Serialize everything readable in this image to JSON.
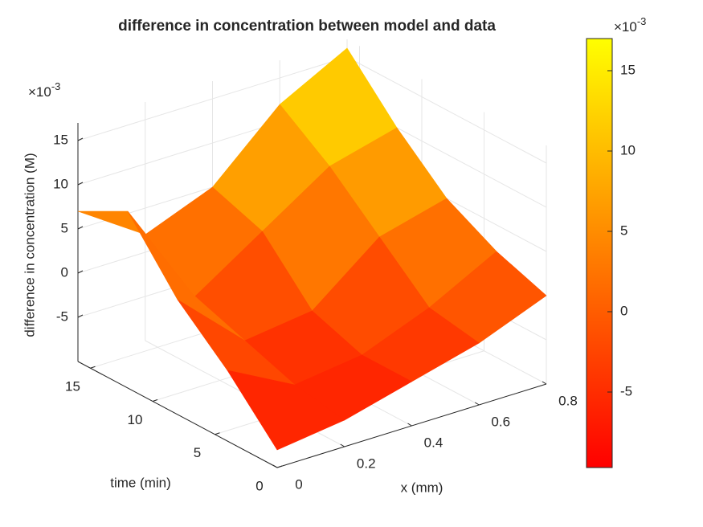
{
  "chart_data": {
    "type": "surface",
    "title": "difference in concentration between model and data",
    "xlabel": "x (mm)",
    "ylabel": "time (min)",
    "zlabel": "difference in concentration (M)",
    "x": [
      0,
      0.2,
      0.4,
      0.6,
      0.8
    ],
    "y": [
      0,
      4,
      8,
      12,
      16
    ],
    "z": [
      [
        -8,
        -7,
        -5,
        -3,
        0
      ],
      [
        -2,
        -6,
        -5,
        -2,
        2
      ],
      [
        3,
        -4,
        -3,
        3,
        5
      ],
      [
        10,
        -2,
        3,
        8,
        10
      ],
      [
        7,
        2,
        5,
        12,
        16
      ]
    ],
    "xlim": [
      0,
      0.8
    ],
    "xticks": [
      0,
      0.2,
      0.4,
      0.6,
      0.8
    ],
    "ylim": [
      0,
      16
    ],
    "yticks": [
      0,
      5,
      10,
      15
    ],
    "zlim": [
      -10,
      17
    ],
    "zticks": [
      -5,
      0,
      5,
      10,
      15
    ],
    "z_exponent": {
      "base": "×10",
      "power": "-3"
    },
    "colormap": [
      "#ff0000",
      "#ffff00"
    ],
    "clim": [
      -9.7,
      17
    ],
    "cticks": [
      -5,
      0,
      5,
      10,
      15
    ],
    "c_exponent": {
      "base": "×10",
      "power": "-3"
    },
    "grid": true
  }
}
